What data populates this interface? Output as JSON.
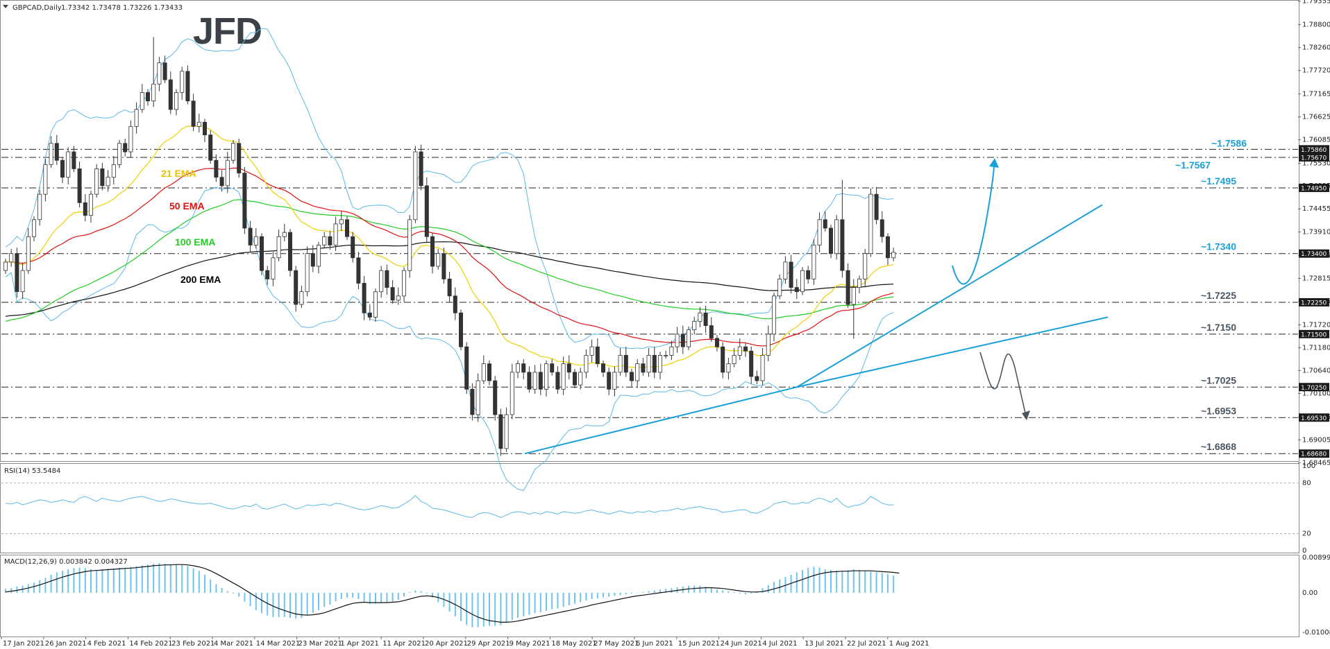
{
  "chart_data": [
    {
      "type": "candlestick",
      "title": "GBPCAD,Daily",
      "ohlc_header": "1.73342 1.73478 1.73226 1.73433",
      "ylim": [
        1.6852,
        1.7935
      ],
      "y_ticks": [
        "1.79355",
        "1.78800",
        "1.78260",
        "1.77720",
        "1.77165",
        "1.76625",
        "1.76085",
        "1.75530",
        "1.74995",
        "1.74455",
        "1.73910",
        "1.73355",
        "1.72815",
        "1.72275",
        "1.71720",
        "1.71180",
        "1.70640",
        "1.70100",
        "1.69545",
        "1.69005",
        "1.68465"
      ],
      "x_ticks": [
        "17 Jan 2021",
        "26 Jan 2021",
        "4 Feb 2021",
        "14 Feb 2021",
        "23 Feb 2021",
        "4 Mar 2021",
        "14 Mar 2021",
        "23 Mar 2021",
        "1 Apr 2021",
        "11 Apr 2021",
        "20 Apr 2021",
        "29 Apr 2021",
        "9 May 2021",
        "18 May 2021",
        "27 May 2021",
        "6 Jun 2021",
        "15 Jun 2021",
        "24 Jun 2021",
        "4 Jul 2021",
        "13 Jul 2021",
        "22 Jul 2021",
        "1 Aug 2021"
      ],
      "levels": [
        {
          "box": "1.75860",
          "label": "~1.7586",
          "value": 1.7586,
          "color": "#1aa0d8"
        },
        {
          "box": "1.75670",
          "label": "~1.7567",
          "value": 1.7567,
          "color": "#1aa0d8"
        },
        {
          "box": "1.74950",
          "label": "~1.7495",
          "value": 1.7495,
          "color": "#1aa0d8"
        },
        {
          "box": "1.73400",
          "label": "~1.7340",
          "value": 1.734,
          "color": "#1aa0d8"
        },
        {
          "box": "1.72250",
          "label": "~1.7225",
          "value": 1.7225,
          "color": "#4a5560"
        },
        {
          "box": "1.71500",
          "label": "~1.7150",
          "value": 1.715,
          "color": "#4a5560"
        },
        {
          "box": "1.70250",
          "label": "~1.7025",
          "value": 1.7025,
          "color": "#4a5560"
        },
        {
          "box": "1.69530",
          "label": "~1.6953",
          "value": 1.6953,
          "color": "#4a5560"
        },
        {
          "box": "1.68680",
          "label": "~1.6868",
          "value": 1.6868,
          "color": "#4a5560"
        }
      ],
      "ema_labels": [
        {
          "text": "21 EMA",
          "color": "#e8c200"
        },
        {
          "text": "50 EMA",
          "color": "#e01010"
        },
        {
          "text": "100 EMA",
          "color": "#22cc22"
        },
        {
          "text": "200 EMA",
          "color": "#000000"
        }
      ],
      "closes": [
        1.732,
        1.734,
        1.725,
        1.73,
        1.738,
        1.742,
        1.748,
        1.755,
        1.76,
        1.756,
        1.752,
        1.758,
        1.754,
        1.746,
        1.743,
        1.748,
        1.754,
        1.75,
        1.752,
        1.755,
        1.76,
        1.758,
        1.764,
        1.768,
        1.772,
        1.77,
        1.774,
        1.779,
        1.775,
        1.768,
        1.772,
        1.777,
        1.77,
        1.764,
        1.765,
        1.762,
        1.756,
        1.752,
        1.75,
        1.756,
        1.76,
        1.753,
        1.74,
        1.736,
        1.738,
        1.73,
        1.728,
        1.733,
        1.738,
        1.739,
        1.73,
        1.722,
        1.725,
        1.734,
        1.731,
        1.736,
        1.738,
        1.736,
        1.741,
        1.742,
        1.738,
        1.733,
        1.727,
        1.72,
        1.719,
        1.725,
        1.73,
        1.726,
        1.723,
        1.724,
        1.73,
        1.742,
        1.758,
        1.75,
        1.738,
        1.731,
        1.734,
        1.728,
        1.724,
        1.72,
        1.712,
        1.702,
        1.696,
        1.704,
        1.708,
        1.704,
        1.696,
        1.688,
        1.696,
        1.706,
        1.708,
        1.706,
        1.702,
        1.706,
        1.702,
        1.708,
        1.706,
        1.702,
        1.708,
        1.706,
        1.703,
        1.706,
        1.71,
        1.712,
        1.708,
        1.706,
        1.702,
        1.706,
        1.71,
        1.706,
        1.704,
        1.708,
        1.706,
        1.71,
        1.706,
        1.71,
        1.71,
        1.712,
        1.715,
        1.712,
        1.716,
        1.718,
        1.72,
        1.717,
        1.714,
        1.712,
        1.706,
        1.708,
        1.71,
        1.712,
        1.711,
        1.705,
        1.704,
        1.71,
        1.715,
        1.724,
        1.728,
        1.732,
        1.726,
        1.725,
        1.73,
        1.728,
        1.736,
        1.742,
        1.74,
        1.734,
        1.742,
        1.73,
        1.722,
        1.726,
        1.728,
        1.734,
        1.748,
        1.742,
        1.738,
        1.733,
        1.7343
      ]
    },
    {
      "type": "line",
      "title": "RSI(14) 53.5484",
      "ylim": [
        0,
        100
      ],
      "y_ticks": [
        "100",
        "80",
        "20",
        "0"
      ],
      "values": [
        56,
        55,
        57,
        54,
        56,
        58,
        60,
        59,
        57,
        58,
        60,
        58,
        57,
        62,
        64,
        61,
        58,
        62,
        60,
        59,
        58,
        60,
        62,
        63,
        64,
        62,
        60,
        58,
        59,
        61,
        60,
        58,
        57,
        56,
        55,
        55,
        56,
        54,
        52,
        50,
        49,
        51,
        53,
        52,
        55,
        50,
        49,
        51,
        53,
        55,
        52,
        49,
        51,
        54,
        53,
        54,
        55,
        53,
        56,
        55,
        53,
        51,
        49,
        48,
        49,
        51,
        53,
        52,
        50,
        51,
        55,
        59,
        65,
        58,
        55,
        50,
        49,
        48,
        46,
        44,
        42,
        40,
        39,
        43,
        45,
        44,
        42,
        39,
        42,
        45,
        46,
        45,
        43,
        45,
        43,
        46,
        45,
        43,
        46,
        45,
        44,
        45,
        47,
        48,
        46,
        45,
        43,
        45,
        47,
        45,
        44,
        46,
        45,
        47,
        45,
        47,
        47,
        48,
        50,
        48,
        50,
        51,
        52,
        50,
        49,
        48,
        45,
        46,
        47,
        48,
        48,
        45,
        44,
        47,
        50,
        55,
        57,
        58,
        55,
        55,
        57,
        56,
        60,
        62,
        60,
        57,
        62,
        55,
        51,
        53,
        54,
        57,
        64,
        60,
        56,
        54,
        54
      ]
    },
    {
      "type": "bar+line",
      "title": "MACD(12,26,9) 0.003842 0.004327",
      "ylim": [
        -0.010087,
        0.008996
      ],
      "y_ticks": [
        "0.008996",
        "0.00",
        "-0.010087"
      ],
      "histogram": [
        0.001,
        0.0012,
        0.0016,
        0.0018,
        0.0022,
        0.0026,
        0.0032,
        0.0038,
        0.0046,
        0.0052,
        0.0056,
        0.006,
        0.0063,
        0.0064,
        0.0063,
        0.006,
        0.0058,
        0.006,
        0.0061,
        0.0062,
        0.0064,
        0.0064,
        0.0066,
        0.0068,
        0.007,
        0.0072,
        0.0074,
        0.0076,
        0.0074,
        0.0072,
        0.0072,
        0.0071,
        0.0068,
        0.0062,
        0.0056,
        0.0046,
        0.0034,
        0.0022,
        0.0012,
        0.0004,
        -0.0002,
        -0.001,
        -0.0022,
        -0.0034,
        -0.0044,
        -0.0052,
        -0.0058,
        -0.0062,
        -0.0062,
        -0.0062,
        -0.0064,
        -0.0066,
        -0.0064,
        -0.0058,
        -0.0052,
        -0.0044,
        -0.0036,
        -0.003,
        -0.0022,
        -0.0016,
        -0.0012,
        -0.0012,
        -0.0016,
        -0.0022,
        -0.0028,
        -0.0028,
        -0.0026,
        -0.0024,
        -0.0022,
        -0.0018,
        -0.001,
        0.0002,
        0.0006,
        0.0004,
        -0.0002,
        -0.0012,
        -0.0024,
        -0.0036,
        -0.0048,
        -0.006,
        -0.0072,
        -0.0082,
        -0.0088,
        -0.0088,
        -0.0086,
        -0.0084,
        -0.0084,
        -0.0082,
        -0.0076,
        -0.007,
        -0.0064,
        -0.006,
        -0.0056,
        -0.0052,
        -0.005,
        -0.0046,
        -0.0042,
        -0.004,
        -0.0036,
        -0.0032,
        -0.0028,
        -0.0024,
        -0.002,
        -0.0016,
        -0.0014,
        -0.0012,
        -0.001,
        -0.0008,
        -0.0006,
        -0.0004,
        -0.0002,
        0.0,
        0.0002,
        0.0004,
        0.0006,
        0.0008,
        0.001,
        0.0012,
        0.0014,
        0.0016,
        0.0018,
        0.0018,
        0.0018,
        0.0016,
        0.0012,
        0.0008,
        0.0006,
        0.0004,
        0.0002,
        -0.0002,
        -0.0004,
        -0.0002,
        0.0004,
        0.0012,
        0.002,
        0.0028,
        0.0034,
        0.004,
        0.0046,
        0.0052,
        0.0058,
        0.0064,
        0.0066,
        0.0064,
        0.006,
        0.0058,
        0.0056,
        0.0055,
        0.0058,
        0.006,
        0.0058,
        0.0056,
        0.0054,
        0.0052,
        0.005,
        0.0048,
        0.0044
      ],
      "signal": [
        0.0002,
        0.0004,
        0.0006,
        0.0009,
        0.0012,
        0.0016,
        0.002,
        0.0025,
        0.003,
        0.0035,
        0.004,
        0.0044,
        0.0048,
        0.0051,
        0.0054,
        0.0056,
        0.0057,
        0.0058,
        0.0059,
        0.006,
        0.0061,
        0.0062,
        0.0063,
        0.0064,
        0.0066,
        0.0067,
        0.0069,
        0.007,
        0.0071,
        0.0071,
        0.0072,
        0.0072,
        0.0071,
        0.0069,
        0.0066,
        0.0062,
        0.0056,
        0.0049,
        0.0041,
        0.0033,
        0.0025,
        0.0017,
        0.0008,
        -0.0001,
        -0.001,
        -0.0019,
        -0.0027,
        -0.0034,
        -0.004,
        -0.0045,
        -0.005,
        -0.0054,
        -0.0056,
        -0.0057,
        -0.0056,
        -0.0054,
        -0.0051,
        -0.0046,
        -0.0041,
        -0.0036,
        -0.0031,
        -0.0027,
        -0.0025,
        -0.0024,
        -0.0025,
        -0.0025,
        -0.0025,
        -0.0025,
        -0.0024,
        -0.0023,
        -0.002,
        -0.0016,
        -0.0012,
        -0.0009,
        -0.0008,
        -0.0009,
        -0.0012,
        -0.0017,
        -0.0023,
        -0.003,
        -0.0038,
        -0.0047,
        -0.0055,
        -0.0062,
        -0.0067,
        -0.0071,
        -0.0073,
        -0.0075,
        -0.0075,
        -0.0074,
        -0.0072,
        -0.0069,
        -0.0066,
        -0.0063,
        -0.006,
        -0.0057,
        -0.0054,
        -0.0051,
        -0.0048,
        -0.0045,
        -0.0042,
        -0.0038,
        -0.0035,
        -0.0031,
        -0.0028,
        -0.0025,
        -0.0022,
        -0.0019,
        -0.0016,
        -0.0013,
        -0.001,
        -0.0008,
        -0.0006,
        -0.0004,
        -0.0002,
        0.0,
        0.0002,
        0.0004,
        0.0006,
        0.0008,
        0.001,
        0.0011,
        0.0012,
        0.0013,
        0.0013,
        0.0012,
        0.0011,
        0.0009,
        0.0007,
        0.0005,
        0.0003,
        0.0002,
        0.0002,
        0.0003,
        0.0006,
        0.001,
        0.0014,
        0.0019,
        0.0024,
        0.0029,
        0.0034,
        0.0039,
        0.0044,
        0.0048,
        0.0051,
        0.0053,
        0.0054,
        0.0055,
        0.0055,
        0.0056,
        0.0056,
        0.0056,
        0.0056,
        0.0055,
        0.0054,
        0.0053,
        0.0052,
        0.005
      ]
    }
  ],
  "branding": {
    "logo_text": "JFD"
  },
  "colors": {
    "up_candle": "#ffffff",
    "down_candle": "#333333",
    "bollinger": "#5bb8e8",
    "trendline": "#1aa0d8",
    "hist": "#6ec4ee"
  }
}
